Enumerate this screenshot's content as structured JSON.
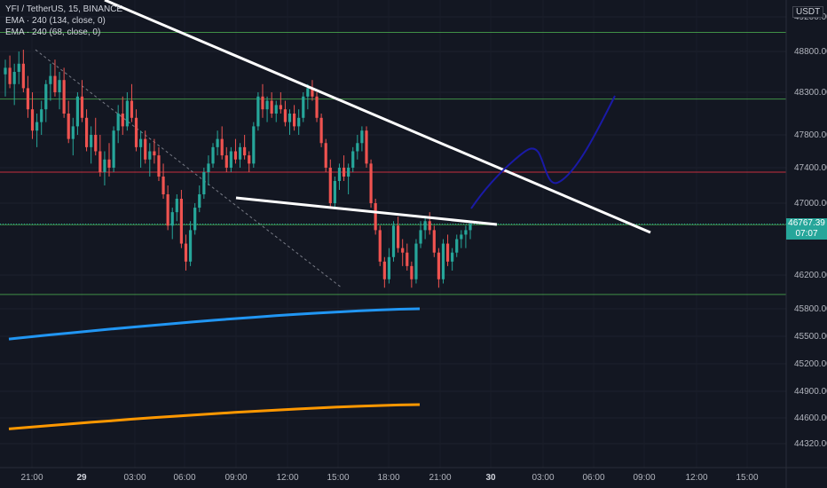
{
  "legend": {
    "symbol": "YFI / TetherUS, 15, BINANCE",
    "ema1": "EMA · 240 (134, close, 0)",
    "ema2": "EMA · 240 (68, close, 0)"
  },
  "currency": "USDT",
  "price_badge": {
    "price": "46767.39",
    "countdown": "07:07"
  },
  "chart_data": {
    "type": "candlestick",
    "title": "YFI / TetherUS, 15, BINANCE",
    "yticks": [
      44320,
      44600,
      44900,
      45200,
      45500,
      45800,
      46200,
      47000,
      47400,
      47800,
      48300,
      48800,
      49200
    ],
    "ytick_labels": [
      "44320.00",
      "44600.00",
      "44900.00",
      "45200.00",
      "45500.00",
      "45800.00",
      "46200.00",
      "47000.00",
      "47400.00",
      "47800.00",
      "48300.00",
      "48800.00",
      "49200.00"
    ],
    "xtick_labels": [
      "21:00",
      "29",
      "03:00",
      "06:00",
      "09:00",
      "12:00",
      "15:00",
      "18:00",
      "21:00",
      "30",
      "03:00",
      "06:00",
      "09:00",
      "12:00",
      "15:00"
    ],
    "bold_xticks": [
      "29",
      "30"
    ],
    "current_price": 46767.39,
    "horizontal_levels": [
      {
        "price": 49020,
        "color": "#4caf50"
      },
      {
        "price": 48220,
        "color": "#4caf50"
      },
      {
        "price": 47350,
        "color": "#f23645"
      },
      {
        "price": 46760,
        "color": "#4caf50"
      },
      {
        "price": 45970,
        "color": "#4caf50"
      }
    ],
    "ema_series": [
      {
        "name": "EMA · 240 (134, close, 0)",
        "color": "#2196f3",
        "start": 45470,
        "end": 45800
      },
      {
        "name": "EMA · 240 (68, close, 0)",
        "color": "#ff9800",
        "start": 44480,
        "end": 44750
      }
    ],
    "candles": [
      [
        48520,
        48700,
        48250,
        48600
      ],
      [
        48600,
        48750,
        48350,
        48400
      ],
      [
        48400,
        48650,
        48150,
        48550
      ],
      [
        48550,
        48800,
        48400,
        48650
      ],
      [
        48650,
        48820,
        48300,
        48350
      ],
      [
        48350,
        48500,
        48000,
        48100
      ],
      [
        48100,
        48300,
        47750,
        47850
      ],
      [
        47850,
        48050,
        47650,
        47950
      ],
      [
        47950,
        48200,
        47800,
        48100
      ],
      [
        48100,
        48450,
        47950,
        48400
      ],
      [
        48400,
        48650,
        48200,
        48500
      ],
      [
        48500,
        48700,
        48250,
        48300
      ],
      [
        48300,
        48550,
        48100,
        48450
      ],
      [
        48450,
        48600,
        48000,
        48050
      ],
      [
        48050,
        48200,
        47700,
        47750
      ],
      [
        47750,
        48000,
        47550,
        47900
      ],
      [
        47900,
        48300,
        47800,
        48250
      ],
      [
        48250,
        48450,
        47950,
        48000
      ],
      [
        48000,
        48100,
        47600,
        47650
      ],
      [
        47650,
        47900,
        47450,
        47800
      ],
      [
        47800,
        48000,
        47550,
        47600
      ],
      [
        47600,
        47800,
        47300,
        47350
      ],
      [
        47350,
        47600,
        47200,
        47500
      ],
      [
        47500,
        47700,
        47300,
        47400
      ],
      [
        47400,
        47900,
        47350,
        47850
      ],
      [
        47850,
        48150,
        47700,
        48050
      ],
      [
        48050,
        48250,
        47800,
        47900
      ],
      [
        47900,
        48300,
        47850,
        48200
      ],
      [
        48200,
        48400,
        47950,
        48000
      ],
      [
        48000,
        48100,
        47600,
        47650
      ],
      [
        47650,
        47850,
        47400,
        47750
      ],
      [
        47750,
        47850,
        47450,
        47500
      ],
      [
        47500,
        47700,
        47300,
        47600
      ],
      [
        47600,
        47750,
        47450,
        47550
      ],
      [
        47550,
        47650,
        47250,
        47300
      ],
      [
        47300,
        47450,
        47050,
        47100
      ],
      [
        47100,
        47200,
        46700,
        46750
      ],
      [
        46750,
        46950,
        46600,
        46900
      ],
      [
        46900,
        47100,
        46800,
        47050
      ],
      [
        47050,
        47150,
        46500,
        46550
      ],
      [
        46550,
        46650,
        46250,
        46350
      ],
      [
        46350,
        46800,
        46300,
        46700
      ],
      [
        46700,
        47000,
        46650,
        46950
      ],
      [
        46950,
        47200,
        46900,
        47100
      ],
      [
        47100,
        47400,
        47050,
        47350
      ],
      [
        47350,
        47550,
        47200,
        47450
      ],
      [
        47450,
        47700,
        47400,
        47650
      ],
      [
        47650,
        47850,
        47550,
        47750
      ],
      [
        47750,
        47900,
        47500,
        47550
      ],
      [
        47550,
        47650,
        47350,
        47400
      ],
      [
        47400,
        47650,
        47350,
        47600
      ],
      [
        47600,
        47750,
        47450,
        47500
      ],
      [
        47500,
        47700,
        47400,
        47650
      ],
      [
        47650,
        47800,
        47500,
        47550
      ],
      [
        47550,
        47600,
        47350,
        47450
      ],
      [
        47450,
        47950,
        47400,
        47900
      ],
      [
        47900,
        48300,
        47850,
        48250
      ],
      [
        48250,
        48400,
        48000,
        48100
      ],
      [
        48100,
        48250,
        47950,
        48200
      ],
      [
        48200,
        48300,
        48000,
        48050
      ],
      [
        48050,
        48200,
        47950,
        48150
      ],
      [
        48150,
        48300,
        48050,
        48100
      ],
      [
        48100,
        48200,
        47900,
        47950
      ],
      [
        47950,
        48100,
        47800,
        48050
      ],
      [
        48050,
        48150,
        47850,
        47900
      ],
      [
        47900,
        48100,
        47800,
        48000
      ],
      [
        48000,
        48300,
        47950,
        48250
      ],
      [
        48250,
        48400,
        48100,
        48350
      ],
      [
        48350,
        48450,
        48200,
        48250
      ],
      [
        48250,
        48300,
        47950,
        48000
      ],
      [
        48000,
        48050,
        47650,
        47700
      ],
      [
        47700,
        47750,
        47350,
        47400
      ],
      [
        47400,
        47500,
        46950,
        47000
      ],
      [
        47000,
        47300,
        46950,
        47250
      ],
      [
        47250,
        47450,
        47150,
        47400
      ],
      [
        47400,
        47550,
        47250,
        47300
      ],
      [
        47300,
        47450,
        47100,
        47400
      ],
      [
        47400,
        47650,
        47350,
        47600
      ],
      [
        47600,
        47800,
        47500,
        47700
      ],
      [
        47700,
        47900,
        47600,
        47850
      ],
      [
        47850,
        47900,
        47400,
        47450
      ],
      [
        47450,
        47500,
        46950,
        47000
      ],
      [
        47000,
        47050,
        46650,
        46700
      ],
      [
        46700,
        46750,
        46300,
        46350
      ],
      [
        46350,
        46400,
        46050,
        46150
      ],
      [
        46150,
        46500,
        46100,
        46400
      ],
      [
        46400,
        46800,
        46350,
        46750
      ],
      [
        46750,
        46850,
        46450,
        46500
      ],
      [
        46500,
        46600,
        46300,
        46450
      ],
      [
        46450,
        46550,
        46250,
        46300
      ],
      [
        46300,
        46350,
        46050,
        46150
      ],
      [
        46150,
        46600,
        46100,
        46550
      ],
      [
        46550,
        46800,
        46500,
        46700
      ],
      [
        46700,
        46850,
        46600,
        46800
      ],
      [
        46800,
        46900,
        46650,
        46700
      ],
      [
        46700,
        46750,
        46400,
        46450
      ],
      [
        46450,
        46500,
        46050,
        46150
      ],
      [
        46150,
        46600,
        46100,
        46550
      ],
      [
        46550,
        46650,
        46300,
        46350
      ],
      [
        46350,
        46500,
        46250,
        46450
      ],
      [
        46450,
        46650,
        46400,
        46600
      ],
      [
        46600,
        46700,
        46500,
        46650
      ],
      [
        46650,
        46750,
        46500,
        46700
      ],
      [
        46700,
        46800,
        46600,
        46767
      ]
    ]
  }
}
